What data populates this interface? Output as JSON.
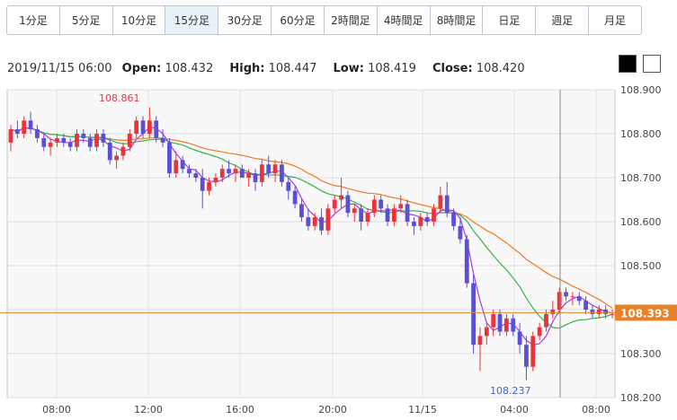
{
  "timeframes": [
    {
      "label": "1分足"
    },
    {
      "label": "5分足"
    },
    {
      "label": "10分足"
    },
    {
      "label": "15分足",
      "active": true
    },
    {
      "label": "30分足"
    },
    {
      "label": "60分足"
    },
    {
      "label": "2時間足"
    },
    {
      "label": "4時間足"
    },
    {
      "label": "8時間足"
    },
    {
      "label": "日足"
    },
    {
      "label": "週足"
    },
    {
      "label": "月足"
    }
  ],
  "ohlc": {
    "datetime": "2019/11/15 06:00",
    "open_label": "Open:",
    "open": "108.432",
    "high_label": "High:",
    "high": "108.447",
    "low_label": "Low:",
    "low": "108.419",
    "close_label": "Close:",
    "close": "108.420"
  },
  "theme": {
    "dark": "#000000",
    "light": "#ffffff"
  },
  "chart_data": {
    "type": "candlestick",
    "y_ticks": [
      "108.200",
      "108.300",
      "108.400",
      "108.500",
      "108.600",
      "108.700",
      "108.800",
      "108.900"
    ],
    "ylim": [
      108.2,
      108.9
    ],
    "x_ticks": [
      "08:00",
      "12:00",
      "16:00",
      "20:00",
      "11/15",
      "04:00",
      "08:00"
    ],
    "current_price": "108.393",
    "current_price_value": 108.393,
    "high_marker": {
      "label": "108.861",
      "value": 108.861
    },
    "low_marker": {
      "label": "108.237",
      "value": 108.237
    },
    "colors": {
      "up": "#e8343a",
      "down": "#5b4fd6",
      "ma_short": "#a83de0",
      "ma_mid": "#2fb54a",
      "ma_long": "#f07a1e",
      "price_line": "#e8822a",
      "price_tag": "#e8822a",
      "high_text": "#e8344a",
      "low_text": "#4a66c8"
    },
    "candles": [
      [
        108.78,
        108.82,
        108.76,
        108.81
      ],
      [
        108.81,
        108.83,
        108.79,
        108.8
      ],
      [
        108.8,
        108.84,
        108.79,
        108.83
      ],
      [
        108.83,
        108.85,
        108.8,
        108.81
      ],
      [
        108.81,
        108.82,
        108.78,
        108.79
      ],
      [
        108.79,
        108.8,
        108.76,
        108.77
      ],
      [
        108.77,
        108.79,
        108.75,
        108.78
      ],
      [
        108.78,
        108.8,
        108.77,
        108.79
      ],
      [
        108.79,
        108.8,
        108.77,
        108.78
      ],
      [
        108.78,
        108.79,
        108.76,
        108.77
      ],
      [
        108.77,
        108.81,
        108.76,
        108.8
      ],
      [
        108.8,
        108.81,
        108.78,
        108.79
      ],
      [
        108.79,
        108.8,
        108.76,
        108.77
      ],
      [
        108.77,
        108.81,
        108.76,
        108.8
      ],
      [
        108.8,
        108.81,
        108.77,
        108.78
      ],
      [
        108.78,
        108.79,
        108.73,
        108.74
      ],
      [
        108.74,
        108.76,
        108.72,
        108.75
      ],
      [
        108.75,
        108.78,
        108.74,
        108.77
      ],
      [
        108.77,
        108.81,
        108.76,
        108.8
      ],
      [
        108.8,
        108.84,
        108.79,
        108.83
      ],
      [
        108.83,
        108.84,
        108.79,
        108.8
      ],
      [
        108.8,
        108.86,
        108.79,
        108.83
      ],
      [
        108.83,
        108.84,
        108.78,
        108.79
      ],
      [
        108.79,
        108.81,
        108.77,
        108.78
      ],
      [
        108.78,
        108.79,
        108.7,
        108.71
      ],
      [
        108.71,
        108.76,
        108.7,
        108.74
      ],
      [
        108.74,
        108.75,
        108.71,
        108.72
      ],
      [
        108.72,
        108.73,
        108.7,
        108.71
      ],
      [
        108.71,
        108.72,
        108.69,
        108.7
      ],
      [
        108.7,
        108.72,
        108.63,
        108.67
      ],
      [
        108.67,
        108.7,
        108.66,
        108.69
      ],
      [
        108.69,
        108.71,
        108.68,
        108.7
      ],
      [
        108.7,
        108.73,
        108.69,
        108.72
      ],
      [
        108.72,
        108.74,
        108.7,
        108.71
      ],
      [
        108.71,
        108.73,
        108.69,
        108.72
      ],
      [
        108.72,
        108.73,
        108.7,
        108.7
      ],
      [
        108.7,
        108.72,
        108.68,
        108.71
      ],
      [
        108.71,
        108.72,
        108.67,
        108.69
      ],
      [
        108.69,
        108.74,
        108.68,
        108.73
      ],
      [
        108.73,
        108.75,
        108.7,
        108.71
      ],
      [
        108.71,
        108.74,
        108.69,
        108.73
      ],
      [
        108.73,
        108.74,
        108.68,
        108.69
      ],
      [
        108.69,
        108.7,
        108.65,
        108.67
      ],
      [
        108.67,
        108.68,
        108.63,
        108.64
      ],
      [
        108.64,
        108.65,
        108.6,
        108.61
      ],
      [
        108.61,
        108.63,
        108.58,
        108.59
      ],
      [
        108.59,
        108.62,
        108.58,
        108.61
      ],
      [
        108.61,
        108.63,
        108.57,
        108.58
      ],
      [
        108.58,
        108.64,
        108.57,
        108.63
      ],
      [
        108.63,
        108.66,
        108.62,
        108.65
      ],
      [
        108.65,
        108.7,
        108.63,
        108.66
      ],
      [
        108.66,
        108.67,
        108.61,
        108.62
      ],
      [
        108.62,
        108.64,
        108.6,
        108.63
      ],
      [
        108.63,
        108.64,
        108.58,
        108.6
      ],
      [
        108.6,
        108.63,
        108.59,
        108.62
      ],
      [
        108.62,
        108.66,
        108.61,
        108.65
      ],
      [
        108.65,
        108.66,
        108.62,
        108.63
      ],
      [
        108.63,
        108.64,
        108.59,
        108.6
      ],
      [
        108.6,
        108.64,
        108.59,
        108.63
      ],
      [
        108.63,
        108.66,
        108.62,
        108.64
      ],
      [
        108.64,
        108.65,
        108.59,
        108.6
      ],
      [
        108.6,
        108.61,
        108.57,
        108.59
      ],
      [
        108.59,
        108.62,
        108.58,
        108.61
      ],
      [
        108.61,
        108.62,
        108.59,
        108.6
      ],
      [
        108.6,
        108.64,
        108.59,
        108.63
      ],
      [
        108.63,
        108.68,
        108.62,
        108.66
      ],
      [
        108.66,
        108.69,
        108.61,
        108.62
      ],
      [
        108.62,
        108.63,
        108.58,
        108.59
      ],
      [
        108.59,
        108.61,
        108.55,
        108.56
      ],
      [
        108.56,
        108.57,
        108.45,
        108.46
      ],
      [
        108.46,
        108.48,
        108.3,
        108.32
      ],
      [
        108.32,
        108.36,
        108.26,
        108.34
      ],
      [
        108.34,
        108.37,
        108.32,
        108.36
      ],
      [
        108.36,
        108.4,
        108.34,
        108.39
      ],
      [
        108.39,
        108.4,
        108.34,
        108.35
      ],
      [
        108.35,
        108.39,
        108.34,
        108.38
      ],
      [
        108.38,
        108.39,
        108.34,
        108.35
      ],
      [
        108.35,
        108.37,
        108.3,
        108.32
      ],
      [
        108.32,
        108.34,
        108.24,
        108.27
      ],
      [
        108.27,
        108.35,
        108.26,
        108.34
      ],
      [
        108.34,
        108.37,
        108.33,
        108.36
      ],
      [
        108.36,
        108.4,
        108.35,
        108.39
      ],
      [
        108.39,
        108.42,
        108.38,
        108.4
      ],
      [
        108.4,
        108.45,
        108.39,
        108.44
      ],
      [
        108.44,
        108.45,
        108.42,
        108.43
      ],
      [
        108.43,
        108.44,
        108.41,
        108.43
      ],
      [
        108.43,
        108.44,
        108.41,
        108.42
      ],
      [
        108.42,
        108.43,
        108.39,
        108.4
      ],
      [
        108.4,
        108.41,
        108.38,
        108.39
      ],
      [
        108.39,
        108.41,
        108.38,
        108.4
      ],
      [
        108.4,
        108.41,
        108.38,
        108.39
      ],
      [
        108.39,
        108.4,
        108.38,
        108.39
      ]
    ]
  }
}
